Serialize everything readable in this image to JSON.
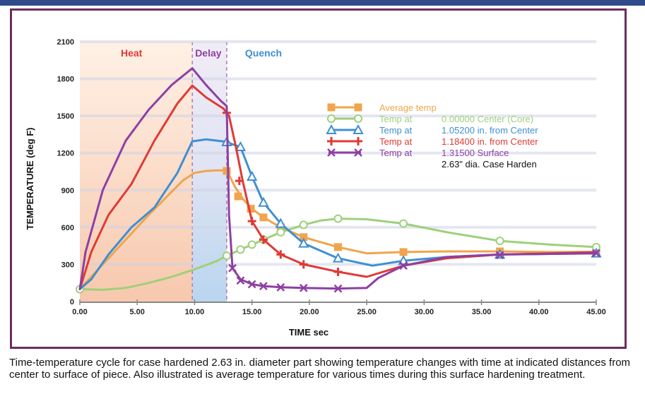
{
  "caption": "Time-temperature cycle for case hardened 2.63 in. diameter part showing temperature changes with time at indicated distances from center to surface of piece. Also illustrated is average temperature for various times during this surface hardening treatment.",
  "colors": {
    "frame": "#6b2d5c",
    "grid": "#cfd3e6",
    "average": "#f0a44c",
    "core": "#9ed07a",
    "r105": "#3f8fd3",
    "r118": "#e03a35",
    "surface": "#8e3fa3"
  },
  "chart_data": {
    "type": "line",
    "xlabel": "TIME sec",
    "ylabel": "TEMPERATURE (deg F)",
    "xlim": [
      0,
      45
    ],
    "ylim": [
      0,
      2100
    ],
    "xticks": [
      "0.00",
      "5.00",
      "10.00",
      "15.00",
      "20.00",
      "25.00",
      "30.00",
      "35.00",
      "40.00",
      "45.00"
    ],
    "yticks": [
      "0",
      "300",
      "600",
      "900",
      "1200",
      "1500",
      "1800",
      "2100"
    ],
    "phases": [
      {
        "label": "Heat",
        "from": 0,
        "to": 9.8,
        "color": "#e03a35"
      },
      {
        "label": "Delay",
        "from": 9.8,
        "to": 12.8,
        "color": "#8e3fa3"
      },
      {
        "label": "Quench",
        "from": 12.8,
        "to": 45,
        "color": "#3f8fd3"
      }
    ],
    "legend_note": "2.63\" dia. Case Harden",
    "series": [
      {
        "name": "Average temp",
        "prefix": "Average temp",
        "position": "",
        "color": "#f0a44c",
        "marker": "square",
        "x": [
          0,
          3,
          6,
          9,
          10,
          11,
          12,
          12.8,
          13.5,
          14.2,
          15,
          16,
          17.5,
          19.5,
          22.5,
          25,
          28.2,
          32,
          36.6,
          41,
          45
        ],
        "y": [
          100,
          400,
          700,
          980,
          1040,
          1055,
          1060,
          1060,
          930,
          830,
          750,
          680,
          600,
          520,
          440,
          390,
          400,
          405,
          405,
          400,
          400
        ],
        "markers": [
          [
            12.8,
            1055
          ],
          [
            13.8,
            850
          ],
          [
            14.9,
            750
          ],
          [
            16,
            680
          ],
          [
            17.5,
            600
          ],
          [
            19.5,
            520
          ],
          [
            22.5,
            440
          ],
          [
            28.2,
            400
          ],
          [
            36.6,
            405
          ],
          [
            45,
            400
          ]
        ]
      },
      {
        "name": "Temp at 0.00000 Center (Core)",
        "prefix": "Temp at",
        "position": "0.00000 Center (Core)",
        "color": "#9ed07a",
        "marker": "circle",
        "x": [
          0,
          2,
          4,
          6,
          8,
          10,
          12,
          12.8,
          14,
          15,
          16,
          17.5,
          19.5,
          21,
          22.5,
          25,
          28.2,
          32,
          36.6,
          41,
          45
        ],
        "y": [
          100,
          95,
          110,
          150,
          200,
          260,
          330,
          370,
          420,
          460,
          500,
          560,
          620,
          655,
          670,
          665,
          630,
          560,
          490,
          460,
          440
        ],
        "markers": [
          [
            0,
            100
          ],
          [
            12.8,
            370
          ],
          [
            14,
            420
          ],
          [
            15,
            460
          ],
          [
            16,
            500
          ],
          [
            17.5,
            560
          ],
          [
            19.5,
            620
          ],
          [
            22.5,
            670
          ],
          [
            28.2,
            630
          ],
          [
            36.6,
            490
          ],
          [
            45,
            440
          ]
        ]
      },
      {
        "name": "Temp at 1.05200 in. from Center",
        "prefix": "Temp at",
        "position": "1.05200 in. from Center",
        "color": "#3f8fd3",
        "marker": "triangle",
        "x": [
          0,
          1,
          2.5,
          4.5,
          6.5,
          8.5,
          9.8,
          11,
          12,
          12.8,
          13.3,
          14,
          15,
          16,
          17.5,
          19.5,
          22.5,
          25.5,
          28.2,
          32,
          36.6,
          41,
          45
        ],
        "y": [
          100,
          180,
          380,
          600,
          760,
          1040,
          1295,
          1310,
          1300,
          1290,
          1270,
          1250,
          1010,
          800,
          630,
          470,
          350,
          290,
          330,
          360,
          380,
          385,
          390
        ],
        "markers": [
          [
            12.8,
            1290
          ],
          [
            14,
            1250
          ],
          [
            15,
            1010
          ],
          [
            16,
            800
          ],
          [
            17.5,
            630
          ],
          [
            19.5,
            470
          ],
          [
            22.5,
            350
          ],
          [
            28.2,
            330
          ],
          [
            36.6,
            380
          ],
          [
            45,
            390
          ]
        ]
      },
      {
        "name": "Temp at 1.18400 in. from Center",
        "prefix": "Temp at",
        "position": "1.18400 in. from Center",
        "color": "#e03a35",
        "marker": "plus",
        "x": [
          0,
          1,
          2.5,
          4.5,
          6.5,
          8.5,
          9.8,
          11,
          12.5,
          13,
          13.6,
          14.2,
          15,
          16,
          17.5,
          19.5,
          22.5,
          25,
          28.2,
          32,
          36.6,
          41,
          45
        ],
        "y": [
          100,
          400,
          700,
          950,
          1300,
          1600,
          1745,
          1650,
          1560,
          1500,
          1250,
          970,
          650,
          500,
          380,
          300,
          240,
          200,
          290,
          350,
          380,
          390,
          400
        ],
        "markers": [
          [
            12.8,
            1525
          ],
          [
            13.9,
            975
          ],
          [
            15,
            650
          ],
          [
            16,
            500
          ],
          [
            17.5,
            380
          ],
          [
            19.5,
            300
          ],
          [
            22.5,
            240
          ]
        ]
      },
      {
        "name": "Temp at 1.31500 Surface",
        "prefix": "Temp at",
        "position": "1.31500 Surface",
        "color": "#8e3fa3",
        "marker": "cross",
        "x": [
          0,
          0.5,
          2,
          4,
          6,
          8,
          9.8,
          11,
          12.3,
          12.8,
          13,
          13.3,
          14,
          15,
          16,
          17.5,
          19.5,
          22.5,
          25,
          26,
          28.2,
          32,
          36.6,
          41,
          45
        ],
        "y": [
          100,
          400,
          900,
          1300,
          1550,
          1750,
          1885,
          1750,
          1620,
          1580,
          700,
          270,
          180,
          140,
          125,
          115,
          110,
          105,
          110,
          190,
          290,
          360,
          380,
          385,
          390
        ],
        "markers": [
          [
            13.3,
            270
          ],
          [
            14,
            170
          ],
          [
            15,
            140
          ],
          [
            16,
            125
          ],
          [
            17.5,
            115
          ],
          [
            19.5,
            110
          ],
          [
            22.5,
            105
          ],
          [
            28.2,
            290
          ],
          [
            36.6,
            375
          ],
          [
            45,
            390
          ]
        ]
      }
    ]
  }
}
